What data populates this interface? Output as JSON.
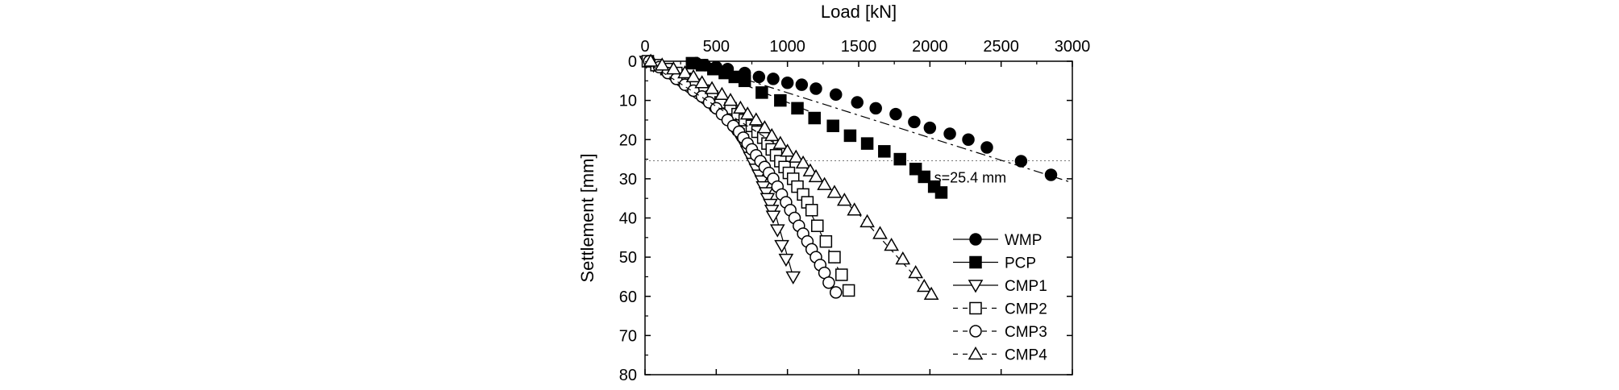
{
  "chart_data": {
    "type": "scatter",
    "xlabel": "Load [kN]",
    "ylabel": "Settlement [mm]",
    "xlim": [
      0,
      3000
    ],
    "ylim": [
      0,
      80
    ],
    "y_inverted": true,
    "x_axis_position": "top",
    "x_ticks": [
      0,
      500,
      1000,
      1500,
      2000,
      2500,
      3000
    ],
    "y_ticks": [
      0,
      10,
      20,
      30,
      40,
      50,
      60,
      70,
      80
    ],
    "x_tick_labels": [
      "0",
      "500",
      "1000",
      "1500",
      "2000",
      "2500",
      "3000"
    ],
    "y_tick_labels": [
      "0",
      "10",
      "20",
      "30",
      "40",
      "50",
      "60",
      "70",
      "80"
    ],
    "grid": false,
    "legend_position": "bottom-right",
    "reference_line": {
      "y": 25.4,
      "style": "dotted",
      "label": "s=25.4 mm"
    },
    "series": [
      {
        "name": "WMP",
        "marker": "circle",
        "filled": true,
        "line": "dash-dot",
        "points": [
          [
            360,
            0.5
          ],
          [
            420,
            1
          ],
          [
            500,
            1.5
          ],
          [
            580,
            2
          ],
          [
            700,
            3
          ],
          [
            800,
            4
          ],
          [
            900,
            4.5
          ],
          [
            1000,
            5.5
          ],
          [
            1100,
            6
          ],
          [
            1200,
            7
          ],
          [
            1340,
            8.5
          ],
          [
            1490,
            10.5
          ],
          [
            1620,
            12
          ],
          [
            1760,
            13.5
          ],
          [
            1890,
            15.5
          ],
          [
            2000,
            17
          ],
          [
            2140,
            18.5
          ],
          [
            2270,
            20
          ],
          [
            2400,
            22
          ],
          [
            2640,
            25.5
          ],
          [
            2850,
            29
          ]
        ],
        "fit_line": [
          [
            300,
            0
          ],
          [
            3000,
            31
          ]
        ]
      },
      {
        "name": "PCP",
        "marker": "square",
        "filled": true,
        "line": "dash-dot",
        "points": [
          [
            330,
            0.5
          ],
          [
            400,
            1
          ],
          [
            480,
            2
          ],
          [
            560,
            3
          ],
          [
            630,
            4
          ],
          [
            700,
            5
          ],
          [
            820,
            8
          ],
          [
            950,
            10
          ],
          [
            1070,
            12
          ],
          [
            1190,
            14.5
          ],
          [
            1320,
            16.5
          ],
          [
            1440,
            19
          ],
          [
            1560,
            21
          ],
          [
            1680,
            23
          ],
          [
            1790,
            25
          ],
          [
            1900,
            27.5
          ],
          [
            1960,
            29.5
          ],
          [
            2030,
            32
          ],
          [
            2080,
            33.5
          ]
        ],
        "fit_line": [
          [
            300,
            0
          ],
          [
            1200,
            13.5
          ]
        ]
      },
      {
        "name": "CMP1",
        "marker": "triangle-down",
        "filled": false,
        "line": "solid",
        "points": [
          [
            10,
            0
          ],
          [
            60,
            1
          ],
          [
            130,
            2
          ],
          [
            200,
            3.5
          ],
          [
            260,
            5
          ],
          [
            320,
            6.5
          ],
          [
            370,
            8
          ],
          [
            420,
            9.5
          ],
          [
            460,
            11
          ],
          [
            510,
            12.5
          ],
          [
            550,
            14
          ],
          [
            590,
            15.5
          ],
          [
            620,
            17
          ],
          [
            650,
            18.5
          ],
          [
            680,
            20
          ],
          [
            700,
            21.5
          ],
          [
            720,
            23
          ],
          [
            740,
            24.5
          ],
          [
            760,
            26
          ],
          [
            780,
            27.5
          ],
          [
            800,
            29
          ],
          [
            820,
            30.5
          ],
          [
            830,
            32
          ],
          [
            850,
            33.5
          ],
          [
            860,
            35
          ],
          [
            880,
            36.5
          ],
          [
            890,
            38
          ],
          [
            900,
            39.5
          ],
          [
            930,
            43
          ],
          [
            960,
            47
          ],
          [
            990,
            50.5
          ],
          [
            1040,
            55
          ]
        ],
        "fit_line": [
          [
            0,
            0
          ],
          [
            400,
            8
          ],
          [
            700,
            20
          ],
          [
            900,
            37
          ],
          [
            1040,
            55
          ]
        ]
      },
      {
        "name": "CMP2",
        "marker": "square",
        "filled": false,
        "line": "dashed",
        "points": [
          [
            20,
            0
          ],
          [
            80,
            1
          ],
          [
            150,
            2
          ],
          [
            220,
            3
          ],
          [
            280,
            4.5
          ],
          [
            340,
            6
          ],
          [
            410,
            7.5
          ],
          [
            470,
            9
          ],
          [
            530,
            10.5
          ],
          [
            600,
            12
          ],
          [
            650,
            13.5
          ],
          [
            700,
            15
          ],
          [
            750,
            16.5
          ],
          [
            790,
            18
          ],
          [
            830,
            19.5
          ],
          [
            860,
            21
          ],
          [
            890,
            22.5
          ],
          [
            920,
            24
          ],
          [
            950,
            25.5
          ],
          [
            980,
            27
          ],
          [
            1010,
            28.5
          ],
          [
            1040,
            30
          ],
          [
            1070,
            32
          ],
          [
            1110,
            34
          ],
          [
            1140,
            36
          ],
          [
            1170,
            38
          ],
          [
            1210,
            42
          ],
          [
            1270,
            46
          ],
          [
            1330,
            50
          ],
          [
            1380,
            54.5
          ],
          [
            1430,
            58.5
          ]
        ],
        "fit_line": [
          [
            0,
            0
          ],
          [
            700,
            15
          ],
          [
            1100,
            34
          ],
          [
            1430,
            58.5
          ]
        ]
      },
      {
        "name": "CMP3",
        "marker": "circle",
        "filled": false,
        "line": "dashed",
        "points": [
          [
            30,
            0
          ],
          [
            100,
            1.5
          ],
          [
            160,
            3
          ],
          [
            220,
            4.5
          ],
          [
            280,
            6
          ],
          [
            340,
            7.5
          ],
          [
            400,
            9
          ],
          [
            450,
            10.5
          ],
          [
            500,
            12
          ],
          [
            540,
            13.5
          ],
          [
            580,
            15
          ],
          [
            620,
            16.5
          ],
          [
            660,
            18
          ],
          [
            690,
            19.5
          ],
          [
            720,
            21
          ],
          [
            750,
            22.5
          ],
          [
            780,
            24
          ],
          [
            810,
            25.5
          ],
          [
            840,
            27
          ],
          [
            870,
            28.5
          ],
          [
            900,
            30
          ],
          [
            930,
            32
          ],
          [
            960,
            34
          ],
          [
            990,
            36
          ],
          [
            1020,
            38
          ],
          [
            1050,
            40
          ],
          [
            1080,
            42
          ],
          [
            1110,
            44
          ],
          [
            1140,
            46
          ],
          [
            1170,
            48
          ],
          [
            1200,
            50
          ],
          [
            1230,
            52
          ],
          [
            1260,
            54
          ],
          [
            1290,
            56.5
          ],
          [
            1340,
            59
          ]
        ],
        "fit_line": [
          [
            0,
            0
          ],
          [
            600,
            16
          ],
          [
            1000,
            36
          ],
          [
            1340,
            59
          ]
        ]
      },
      {
        "name": "CMP4",
        "marker": "triangle-up",
        "filled": false,
        "line": "dashed",
        "points": [
          [
            40,
            0
          ],
          [
            120,
            1
          ],
          [
            200,
            2
          ],
          [
            280,
            3
          ],
          [
            340,
            4
          ],
          [
            400,
            5.5
          ],
          [
            470,
            7
          ],
          [
            540,
            8.5
          ],
          [
            600,
            10
          ],
          [
            670,
            12
          ],
          [
            720,
            13.5
          ],
          [
            780,
            15
          ],
          [
            840,
            17
          ],
          [
            890,
            19
          ],
          [
            950,
            21
          ],
          [
            1000,
            23
          ],
          [
            1060,
            24.5
          ],
          [
            1110,
            26
          ],
          [
            1160,
            28
          ],
          [
            1200,
            29.5
          ],
          [
            1260,
            31.5
          ],
          [
            1330,
            33.5
          ],
          [
            1400,
            35.5
          ],
          [
            1470,
            38
          ],
          [
            1560,
            41
          ],
          [
            1650,
            44
          ],
          [
            1730,
            47
          ],
          [
            1810,
            50.5
          ],
          [
            1900,
            54
          ],
          [
            1960,
            57.5
          ],
          [
            2010,
            59.5
          ]
        ],
        "fit_line": [
          [
            0,
            0
          ],
          [
            1000,
            23
          ],
          [
            1500,
            39
          ],
          [
            2010,
            59.5
          ]
        ]
      }
    ]
  }
}
